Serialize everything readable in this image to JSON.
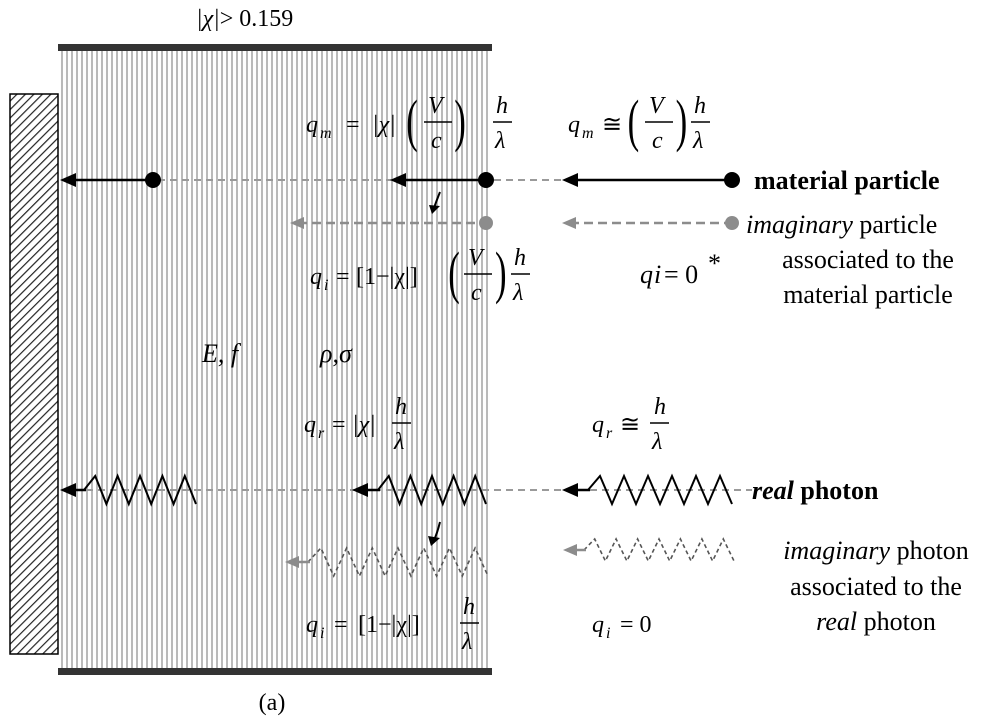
{
  "top_condition": {
    "abs_chi": "|χ|",
    "relation": "> 0.159"
  },
  "material_particle": {
    "label": "material particle",
    "q_m_inside": {
      "lhs": "q",
      "sub": "m",
      "abs_chi": "|χ|",
      "V": "V",
      "c": "c",
      "h": "h",
      "lambda": "λ"
    },
    "q_m_outside": {
      "lhs": "q",
      "sub": "m",
      "approx": "≅",
      "V": "V",
      "c": "c",
      "h": "h",
      "lambda": "λ"
    }
  },
  "imaginary_particle": {
    "label_italic": "imaginary",
    "label_rest": " particle",
    "line2": "associated to the",
    "line3": "material particle",
    "q_i_inside": {
      "lhs": "q",
      "sub": "i",
      "bracket": "[1−|χ|]",
      "V": "V",
      "c": "c",
      "h": "h",
      "lambda": "λ"
    },
    "q_i_outside": {
      "q": "q",
      "i": "i",
      "eq": " = 0",
      "star": "*"
    }
  },
  "medium": {
    "E_f": "E, f",
    "rho_sigma": "ρ,σ"
  },
  "real_photon": {
    "label_italic": "real",
    "label_rest": " photon",
    "q_r_inside": {
      "lhs": "q",
      "sub": "r",
      "abs_chi": "|χ|",
      "h": "h",
      "lambda": "λ"
    },
    "q_r_outside": {
      "lhs": "q",
      "sub": "r",
      "approx": "≅",
      "h": "h",
      "lambda": "λ"
    }
  },
  "imaginary_photon": {
    "label_italic": "imaginary",
    "label_rest": " photon",
    "line2": "associated to the",
    "line3_italic": "real",
    "line3_rest": " photon",
    "q_i_inside": {
      "lhs": "q",
      "sub": "i",
      "bracket": "[1−|χ|]",
      "h": "h",
      "lambda": "λ"
    },
    "q_i_outside": {
      "lhs": "q",
      "sub": "i",
      "eq": "= 0"
    }
  },
  "caption": "(a)",
  "colors": {
    "black": "#000000",
    "gray": "#8c8c8c",
    "stripe": "#a8a8a8",
    "dashed": "#9a9a9a",
    "bar": "#333333"
  }
}
